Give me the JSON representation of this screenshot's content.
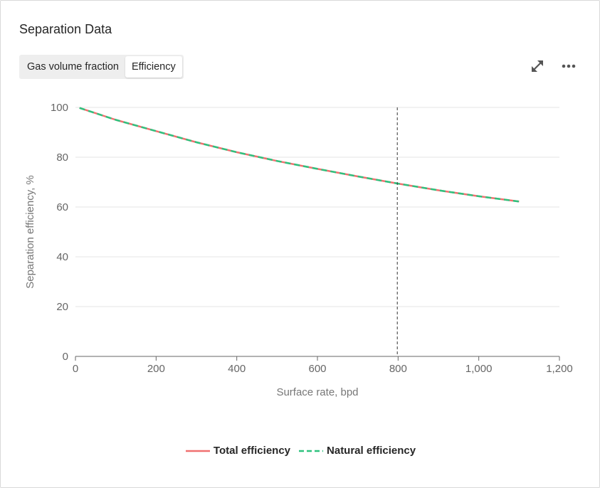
{
  "card": {
    "title": "Separation Data"
  },
  "tabs": [
    {
      "label": "Gas volume fraction",
      "active": false
    },
    {
      "label": "Efficiency",
      "active": true
    }
  ],
  "toolbar": {
    "expand_icon": "expand-arrows-icon",
    "more_icon": "more-horizontal-icon"
  },
  "chart_data": {
    "type": "line",
    "title": "",
    "xlabel": "Surface rate, bpd",
    "ylabel": "Separation efficiency, %",
    "xlim": [
      0,
      1200
    ],
    "ylim": [
      0,
      100
    ],
    "xticks": [
      0,
      200,
      400,
      600,
      800,
      1000,
      1200
    ],
    "xtick_labels": [
      "0",
      "200",
      "400",
      "600",
      "800",
      "1,000",
      "1,200"
    ],
    "yticks": [
      0,
      20,
      40,
      60,
      80,
      100
    ],
    "ytick_labels": [
      "0",
      "20",
      "40",
      "60",
      "80",
      "100"
    ],
    "grid": "horizontal",
    "legend_position": "bottom",
    "vertical_marker": {
      "x": 798,
      "style": "dashed",
      "color": "#333333"
    },
    "series": [
      {
        "name": "Total efficiency",
        "color": "#f07070",
        "style": "solid",
        "x": [
          10,
          100,
          200,
          300,
          400,
          500,
          600,
          700,
          800,
          900,
          1000,
          1100
        ],
        "y": [
          99.8,
          95,
          90.5,
          86,
          82,
          78.5,
          75.3,
          72.3,
          69.4,
          66.7,
          64.3,
          62.2
        ]
      },
      {
        "name": "Natural efficiency",
        "color": "#2ec27e",
        "style": "dashed",
        "x": [
          10,
          100,
          200,
          300,
          400,
          500,
          600,
          700,
          800,
          900,
          1000,
          1100
        ],
        "y": [
          99.8,
          95,
          90.5,
          86,
          82,
          78.5,
          75.3,
          72.3,
          69.4,
          66.7,
          64.3,
          62.2
        ]
      }
    ]
  }
}
